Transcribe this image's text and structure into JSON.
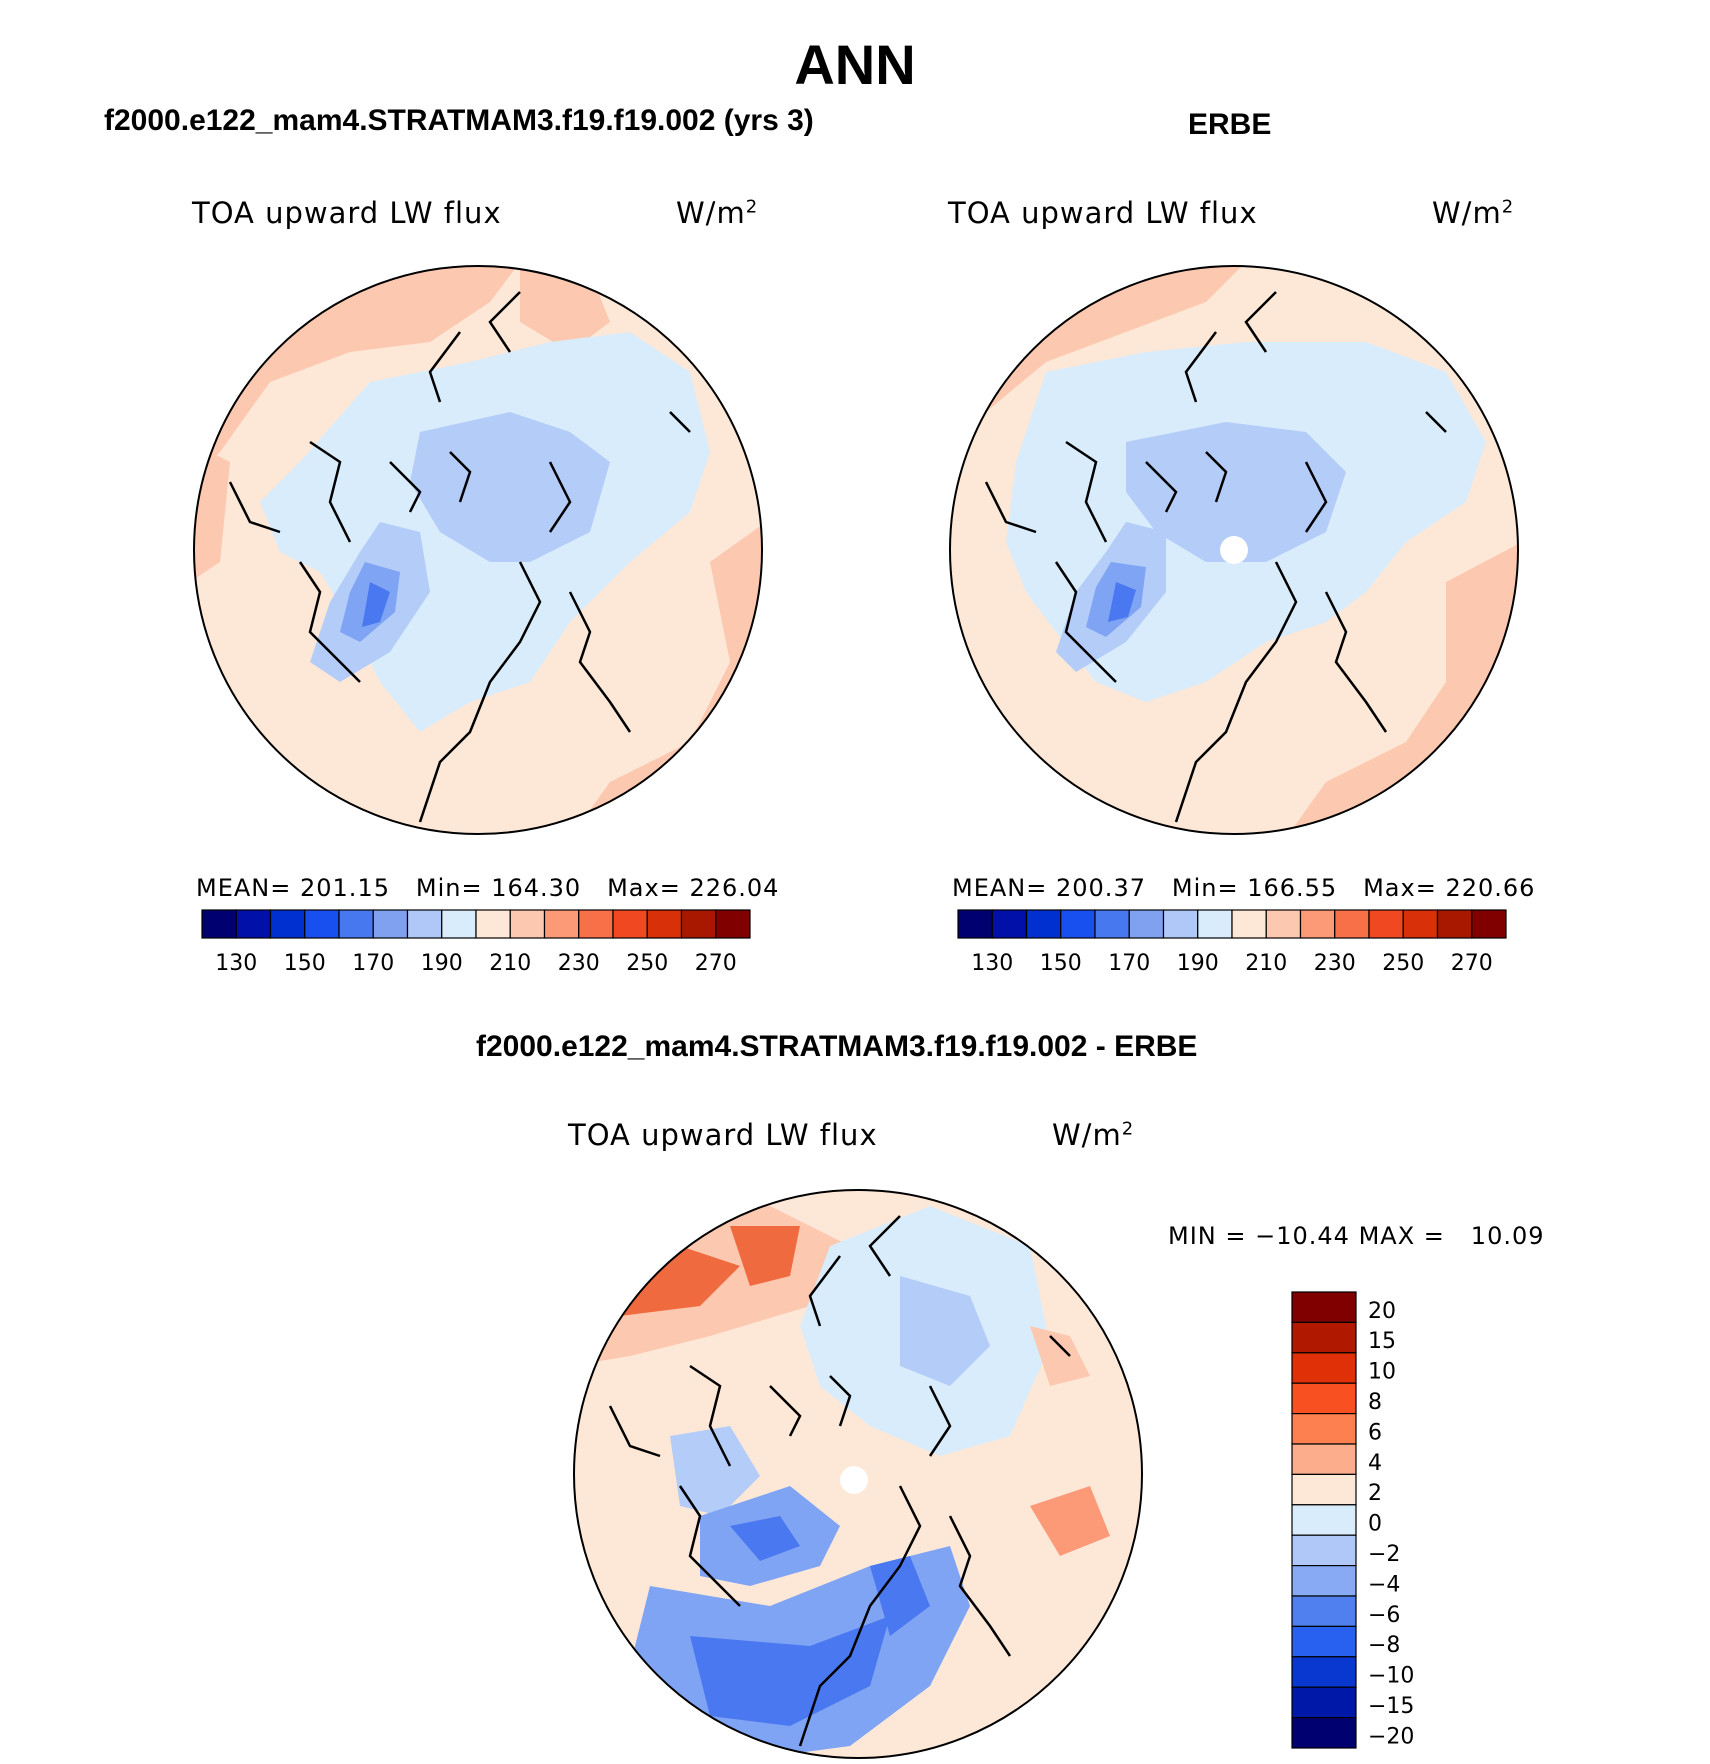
{
  "title": "ANN",
  "panels": [
    {
      "heading": "f2000.e122_mam4.STRATMAM3.f19.f19.002 (yrs 3)",
      "variable": "TOA upward LW flux",
      "units_base": "W/m",
      "units_exp": "2",
      "stats": {
        "mean_label": "MEAN=",
        "mean": "201.15",
        "min_label": "Min=",
        "min": "164.30",
        "max_label": "Max=",
        "max": "226.04"
      }
    },
    {
      "heading": "ERBE",
      "variable": "TOA upward LW flux",
      "units_base": "W/m",
      "units_exp": "2",
      "stats": {
        "mean_label": "MEAN=",
        "mean": "200.37",
        "min_label": "Min=",
        "min": "166.55",
        "max_label": "Max=",
        "max": "220.66"
      }
    }
  ],
  "diff_panel": {
    "heading": "f2000.e122_mam4.STRATMAM3.f19.f19.002 - ERBE",
    "variable": "TOA upward LW flux",
    "units_base": "W/m",
    "units_exp": "2",
    "minmax": {
      "min_label": "MIN =",
      "min": "−10.44",
      "max_label": "MAX =",
      "max": "10.09"
    }
  },
  "abs_colorbar": {
    "colors": [
      "#000070",
      "#0010a8",
      "#0030d0",
      "#1850f0",
      "#4878f0",
      "#80a0f0",
      "#b0c8f8",
      "#d8ecfc",
      "#fde8d8",
      "#fcc8b0",
      "#fc9a78",
      "#f87048",
      "#f04820",
      "#d83008",
      "#a81800",
      "#800000"
    ],
    "tick_labels": [
      "130",
      "150",
      "170",
      "190",
      "210",
      "230",
      "250",
      "270"
    ]
  },
  "diff_colorbar": {
    "colors": [
      "#800000",
      "#b01800",
      "#e03008",
      "#f85020",
      "#fc8050",
      "#fcae8c",
      "#fde8d8",
      "#d8ecfc",
      "#b0c8f8",
      "#88aaf4",
      "#5080f0",
      "#2860f0",
      "#0838d0",
      "#0018a8",
      "#000070"
    ],
    "tick_labels": [
      "20",
      "15",
      "10",
      "8",
      "6",
      "4",
      "2",
      "0",
      "−2",
      "−4",
      "−6",
      "−8",
      "−10",
      "−15",
      "−20"
    ]
  },
  "map_palette": {
    "deep_blue": "#4a78f0",
    "mid_blue": "#80a4f4",
    "light_blue": "#b4ccf8",
    "pale_blue": "#d8ecfc",
    "pale_orange": "#fde8d8",
    "light_orange": "#fcc8b0",
    "mid_orange": "#fc9a78",
    "strong_orange": "#f06a40"
  }
}
